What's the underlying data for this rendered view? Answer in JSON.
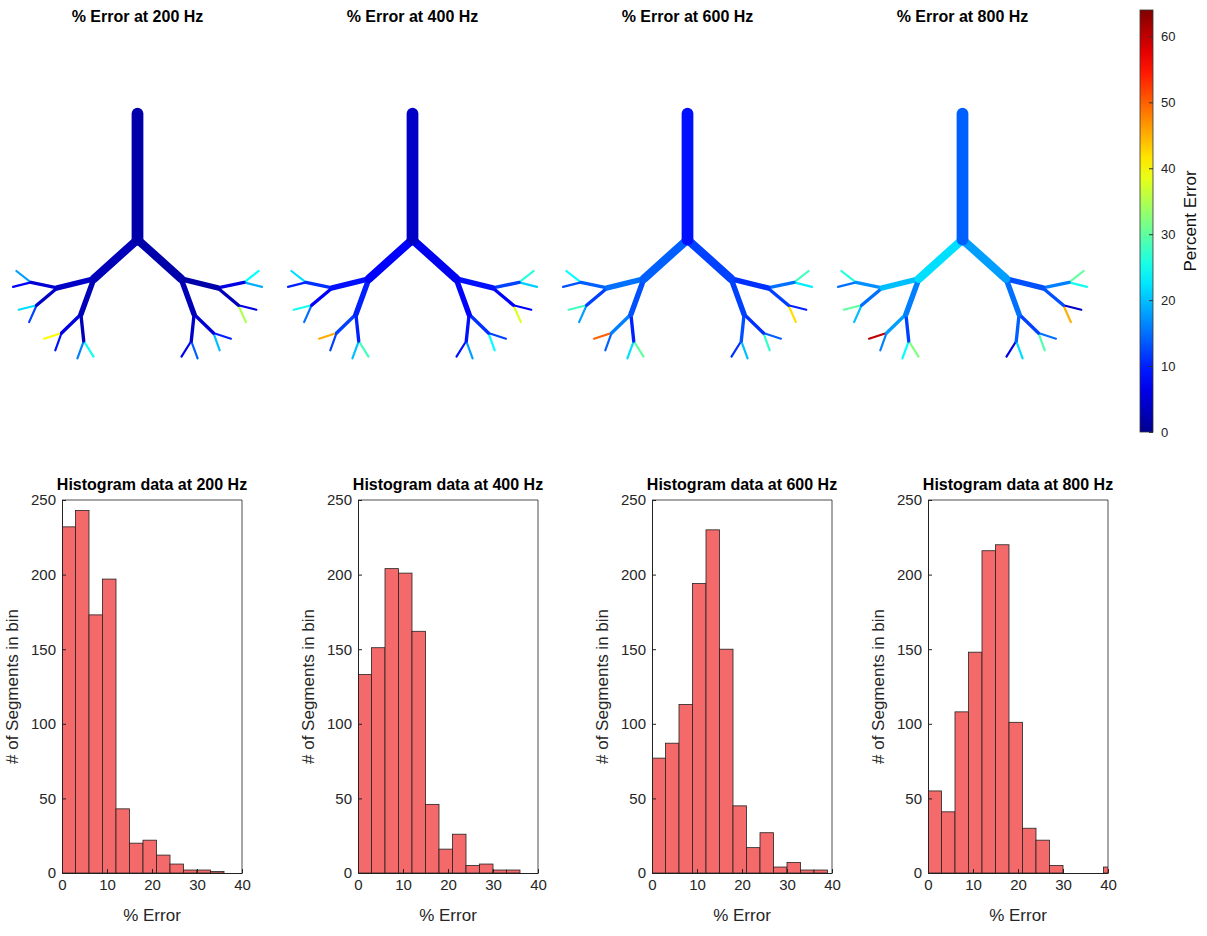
{
  "chart_data": [
    {
      "type": "tree",
      "title": "% Error at 200 Hz",
      "values": [
        2,
        3,
        2,
        4,
        3,
        3,
        2,
        5,
        4,
        6,
        3,
        4,
        5,
        3,
        6,
        18,
        8,
        22,
        12,
        40,
        9,
        16,
        25,
        7,
        14,
        20,
        10,
        35,
        6,
        19,
        24
      ]
    },
    {
      "type": "tree",
      "title": "% Error at 400 Hz",
      "values": [
        4,
        8,
        7,
        9,
        10,
        8,
        9,
        11,
        8,
        12,
        10,
        9,
        11,
        8,
        12,
        22,
        10,
        25,
        15,
        45,
        12,
        20,
        28,
        9,
        18,
        24,
        12,
        38,
        8,
        21,
        26
      ]
    },
    {
      "type": "tree",
      "title": "% Error at 600 Hz",
      "values": [
        9,
        14,
        12,
        15,
        13,
        12,
        11,
        14,
        12,
        16,
        10,
        13,
        11,
        12,
        15,
        24,
        13,
        28,
        18,
        50,
        14,
        22,
        30,
        11,
        20,
        27,
        14,
        42,
        10,
        23,
        28
      ]
    },
    {
      "type": "tree",
      "title": "% Error at 800 Hz",
      "values": [
        14,
        22,
        18,
        20,
        16,
        15,
        13,
        17,
        15,
        18,
        12,
        14,
        12,
        13,
        16,
        26,
        15,
        30,
        20,
        60,
        16,
        24,
        32,
        6,
        22,
        29,
        15,
        45,
        4,
        25,
        30
      ]
    },
    {
      "type": "colorbar",
      "label": "Percent Error",
      "range": [
        0,
        64
      ],
      "ticks": [
        0,
        10,
        20,
        30,
        40,
        50,
        60
      ]
    },
    {
      "type": "histogram",
      "title": "Histogram data at 200 Hz",
      "xlabel": "% Error",
      "ylabel": "# of Segments in bin",
      "bins": [
        0,
        3,
        6,
        9,
        12,
        15,
        18,
        21,
        24,
        27,
        30,
        33,
        36,
        39,
        42
      ],
      "counts": [
        232,
        243,
        173,
        197,
        43,
        20,
        22,
        12,
        6,
        2,
        2,
        1,
        0,
        0
      ],
      "xlim": [
        0,
        40
      ],
      "xticks": [
        0,
        10,
        20,
        30,
        40
      ],
      "ylim": [
        0,
        250
      ],
      "yticks": [
        0,
        50,
        100,
        150,
        200,
        250
      ],
      "color": "#f46a6a"
    },
    {
      "type": "histogram",
      "title": "Histogram data at 400 Hz",
      "xlabel": "% Error",
      "ylabel": "# of Segments in bin",
      "bins": [
        0,
        3,
        6,
        9,
        12,
        15,
        18,
        21,
        24,
        27,
        30,
        33,
        36,
        39,
        42
      ],
      "counts": [
        133,
        151,
        204,
        201,
        162,
        46,
        16,
        26,
        5,
        6,
        2,
        2,
        0,
        0
      ],
      "xlim": [
        0,
        40
      ],
      "xticks": [
        0,
        10,
        20,
        30,
        40
      ],
      "ylim": [
        0,
        250
      ],
      "yticks": [
        0,
        50,
        100,
        150,
        200,
        250
      ],
      "color": "#f46a6a"
    },
    {
      "type": "histogram",
      "title": "Histogram data at 600 Hz",
      "xlabel": "% Error",
      "ylabel": "# of Segments in bin",
      "bins": [
        0,
        3,
        6,
        9,
        12,
        15,
        18,
        21,
        24,
        27,
        30,
        33,
        36,
        39,
        42
      ],
      "counts": [
        77,
        87,
        113,
        194,
        230,
        150,
        45,
        17,
        27,
        4,
        7,
        2,
        2,
        0
      ],
      "xlim": [
        0,
        40
      ],
      "xticks": [
        0,
        10,
        20,
        30,
        40
      ],
      "ylim": [
        0,
        250
      ],
      "yticks": [
        0,
        50,
        100,
        150,
        200,
        250
      ],
      "color": "#f46a6a"
    },
    {
      "type": "histogram",
      "title": "Histogram data at 800 Hz",
      "xlabel": "% Error",
      "ylabel": "# of Segments in bin",
      "bins": [
        0,
        3,
        6,
        9,
        12,
        15,
        18,
        21,
        24,
        27,
        30,
        33,
        36,
        39,
        42
      ],
      "counts": [
        55,
        41,
        108,
        148,
        216,
        220,
        101,
        30,
        22,
        5,
        0,
        0,
        0,
        4
      ],
      "xlim": [
        0,
        40
      ],
      "xticks": [
        0,
        10,
        20,
        30,
        40
      ],
      "ylim": [
        0,
        250
      ],
      "yticks": [
        0,
        50,
        100,
        150,
        200,
        250
      ],
      "color": "#f46a6a"
    }
  ]
}
